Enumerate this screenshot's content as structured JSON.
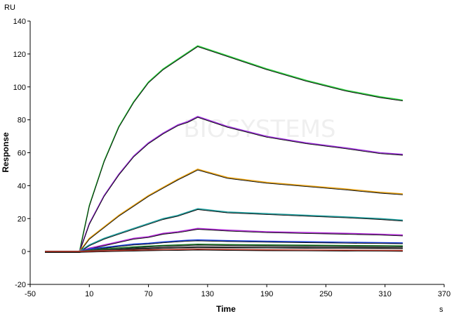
{
  "chart_data": {
    "type": "line",
    "title": "",
    "xlabel": "Time",
    "ylabel": "Response",
    "y_unit": "RU",
    "x_unit": "s",
    "xlim": [
      -50,
      370
    ],
    "ylim": [
      -20,
      140
    ],
    "x_ticks": [
      -50,
      10,
      70,
      130,
      190,
      250,
      310,
      370
    ],
    "y_ticks": [
      -20,
      0,
      20,
      40,
      60,
      80,
      100,
      120,
      140
    ],
    "grid": false,
    "legend": "none",
    "watermark": "BIOSYSTEMS",
    "series": [
      {
        "color": "#2ecc40",
        "values": [
          [
            -35,
            0
          ],
          [
            0,
            0
          ],
          [
            10,
            28
          ],
          [
            25,
            55
          ],
          [
            40,
            76
          ],
          [
            55,
            91
          ],
          [
            70,
            103
          ],
          [
            85,
            111
          ],
          [
            100,
            117
          ],
          [
            110,
            121
          ],
          [
            120,
            125
          ],
          [
            150,
            119
          ],
          [
            190,
            111
          ],
          [
            230,
            104
          ],
          [
            270,
            98
          ],
          [
            305,
            94
          ],
          [
            328,
            92
          ]
        ]
      },
      {
        "color": "#9b30d9",
        "values": [
          [
            -35,
            0
          ],
          [
            0,
            0
          ],
          [
            10,
            17
          ],
          [
            25,
            34
          ],
          [
            40,
            47
          ],
          [
            55,
            58
          ],
          [
            70,
            66
          ],
          [
            85,
            72
          ],
          [
            100,
            77
          ],
          [
            110,
            79
          ],
          [
            120,
            82
          ],
          [
            150,
            76
          ],
          [
            190,
            70
          ],
          [
            230,
            66
          ],
          [
            270,
            63
          ],
          [
            305,
            60
          ],
          [
            328,
            59
          ]
        ]
      },
      {
        "color": "#e8a317",
        "values": [
          [
            -35,
            0
          ],
          [
            0,
            0
          ],
          [
            10,
            8
          ],
          [
            25,
            15
          ],
          [
            40,
            22
          ],
          [
            55,
            28
          ],
          [
            70,
            34
          ],
          [
            85,
            39
          ],
          [
            100,
            44
          ],
          [
            110,
            47
          ],
          [
            120,
            50
          ],
          [
            150,
            45
          ],
          [
            190,
            42
          ],
          [
            230,
            40
          ],
          [
            270,
            38
          ],
          [
            305,
            36
          ],
          [
            328,
            35
          ]
        ]
      },
      {
        "color": "#1f9e9e",
        "values": [
          [
            -35,
            0
          ],
          [
            0,
            0
          ],
          [
            10,
            4
          ],
          [
            25,
            8
          ],
          [
            40,
            11
          ],
          [
            55,
            14
          ],
          [
            70,
            17
          ],
          [
            85,
            20
          ],
          [
            100,
            22
          ],
          [
            110,
            24
          ],
          [
            120,
            26
          ],
          [
            150,
            24
          ],
          [
            190,
            23
          ],
          [
            230,
            22
          ],
          [
            270,
            21
          ],
          [
            305,
            20
          ],
          [
            328,
            19
          ]
        ]
      },
      {
        "color": "#b02ad6",
        "values": [
          [
            -35,
            0
          ],
          [
            0,
            0
          ],
          [
            10,
            2
          ],
          [
            25,
            4
          ],
          [
            40,
            6
          ],
          [
            55,
            8
          ],
          [
            70,
            9
          ],
          [
            85,
            11
          ],
          [
            100,
            12
          ],
          [
            110,
            13
          ],
          [
            120,
            14
          ],
          [
            150,
            13
          ],
          [
            190,
            12
          ],
          [
            230,
            11.5
          ],
          [
            270,
            11
          ],
          [
            305,
            10.5
          ],
          [
            328,
            10
          ]
        ]
      },
      {
        "color": "#1a3fd6",
        "values": [
          [
            -35,
            0
          ],
          [
            0,
            0
          ],
          [
            10,
            1.5
          ],
          [
            25,
            2.5
          ],
          [
            40,
            3.5
          ],
          [
            55,
            4.5
          ],
          [
            70,
            5
          ],
          [
            85,
            5.8
          ],
          [
            100,
            6.4
          ],
          [
            110,
            6.8
          ],
          [
            120,
            7
          ],
          [
            150,
            6.6
          ],
          [
            190,
            6.2
          ],
          [
            230,
            5.9
          ],
          [
            270,
            5.6
          ],
          [
            305,
            5.4
          ],
          [
            328,
            5.2
          ]
        ]
      },
      {
        "color": "#1b7a2a",
        "values": [
          [
            -35,
            0
          ],
          [
            0,
            0
          ],
          [
            10,
            0.8
          ],
          [
            25,
            1.5
          ],
          [
            40,
            2.2
          ],
          [
            55,
            2.8
          ],
          [
            70,
            3.3
          ],
          [
            85,
            3.7
          ],
          [
            100,
            4
          ],
          [
            110,
            4.2
          ],
          [
            120,
            4.4
          ],
          [
            150,
            4.2
          ],
          [
            190,
            4
          ],
          [
            230,
            3.8
          ],
          [
            270,
            3.6
          ],
          [
            305,
            3.5
          ],
          [
            328,
            3.4
          ]
        ]
      },
      {
        "color": "#333333",
        "values": [
          [
            -35,
            0
          ],
          [
            0,
            0
          ],
          [
            10,
            0.5
          ],
          [
            25,
            1
          ],
          [
            40,
            1.4
          ],
          [
            55,
            1.8
          ],
          [
            70,
            2.1
          ],
          [
            85,
            2.4
          ],
          [
            100,
            2.6
          ],
          [
            110,
            2.7
          ],
          [
            120,
            2.8
          ],
          [
            150,
            2.7
          ],
          [
            190,
            2.6
          ],
          [
            230,
            2.5
          ],
          [
            270,
            2.4
          ],
          [
            305,
            2.3
          ],
          [
            328,
            2.2
          ]
        ]
      },
      {
        "color": "#c0392b",
        "values": [
          [
            -35,
            0
          ],
          [
            0,
            0
          ],
          [
            10,
            0.2
          ],
          [
            25,
            0.4
          ],
          [
            40,
            0.6
          ],
          [
            55,
            0.8
          ],
          [
            70,
            1
          ],
          [
            85,
            1.1
          ],
          [
            100,
            1.2
          ],
          [
            110,
            1.3
          ],
          [
            120,
            1.4
          ],
          [
            150,
            1.2
          ],
          [
            190,
            1
          ],
          [
            230,
            0.9
          ],
          [
            270,
            0.8
          ],
          [
            305,
            0.7
          ],
          [
            328,
            0.6
          ]
        ]
      }
    ]
  }
}
